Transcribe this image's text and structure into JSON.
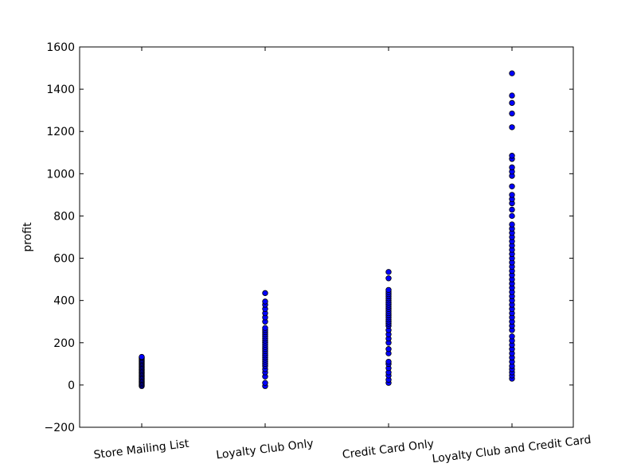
{
  "chart_data": {
    "type": "scatter",
    "title": "",
    "xlabel": "",
    "ylabel": "profit",
    "ylim": [
      -200,
      1600
    ],
    "yticks": [
      -200,
      0,
      200,
      400,
      600,
      800,
      1000,
      1200,
      1400,
      1600
    ],
    "ytick_labels": [
      "−200",
      "0",
      "200",
      "400",
      "600",
      "800",
      "1000",
      "1200",
      "1400",
      "1600"
    ],
    "categories": [
      "Store Mailing List",
      "Loyalty Club Only",
      "Credit Card Only",
      "Loyalty Club and Credit Card"
    ],
    "grid": false,
    "marker_color": "#0000ff",
    "series": [
      {
        "category": "Store Mailing List",
        "values": [
          -5,
          0,
          5,
          10,
          15,
          20,
          25,
          30,
          35,
          40,
          45,
          50,
          55,
          60,
          65,
          70,
          75,
          80,
          85,
          90,
          95,
          100,
          105,
          110,
          115,
          120,
          125,
          130,
          133
        ]
      },
      {
        "category": "Loyalty Club Only",
        "values": [
          -5,
          10,
          40,
          60,
          75,
          90,
          100,
          110,
          120,
          130,
          140,
          150,
          160,
          170,
          180,
          190,
          200,
          210,
          220,
          230,
          240,
          250,
          260,
          270,
          300,
          320,
          340,
          360,
          380,
          395,
          435
        ]
      },
      {
        "category": "Credit Card Only",
        "values": [
          10,
          25,
          45,
          60,
          80,
          100,
          110,
          150,
          170,
          200,
          220,
          240,
          260,
          280,
          290,
          300,
          310,
          320,
          330,
          340,
          350,
          360,
          370,
          380,
          390,
          400,
          410,
          420,
          430,
          440,
          450,
          505,
          535
        ]
      },
      {
        "category": "Loyalty Club and Credit Card",
        "values": [
          30,
          45,
          60,
          75,
          90,
          110,
          130,
          150,
          170,
          190,
          210,
          230,
          260,
          280,
          300,
          320,
          340,
          360,
          380,
          400,
          420,
          440,
          460,
          480,
          500,
          520,
          540,
          560,
          580,
          600,
          620,
          640,
          660,
          680,
          700,
          720,
          740,
          760,
          800,
          830,
          860,
          880,
          900,
          940,
          990,
          1010,
          1030,
          1070,
          1085,
          1220,
          1285,
          1335,
          1370,
          1475
        ]
      }
    ]
  }
}
